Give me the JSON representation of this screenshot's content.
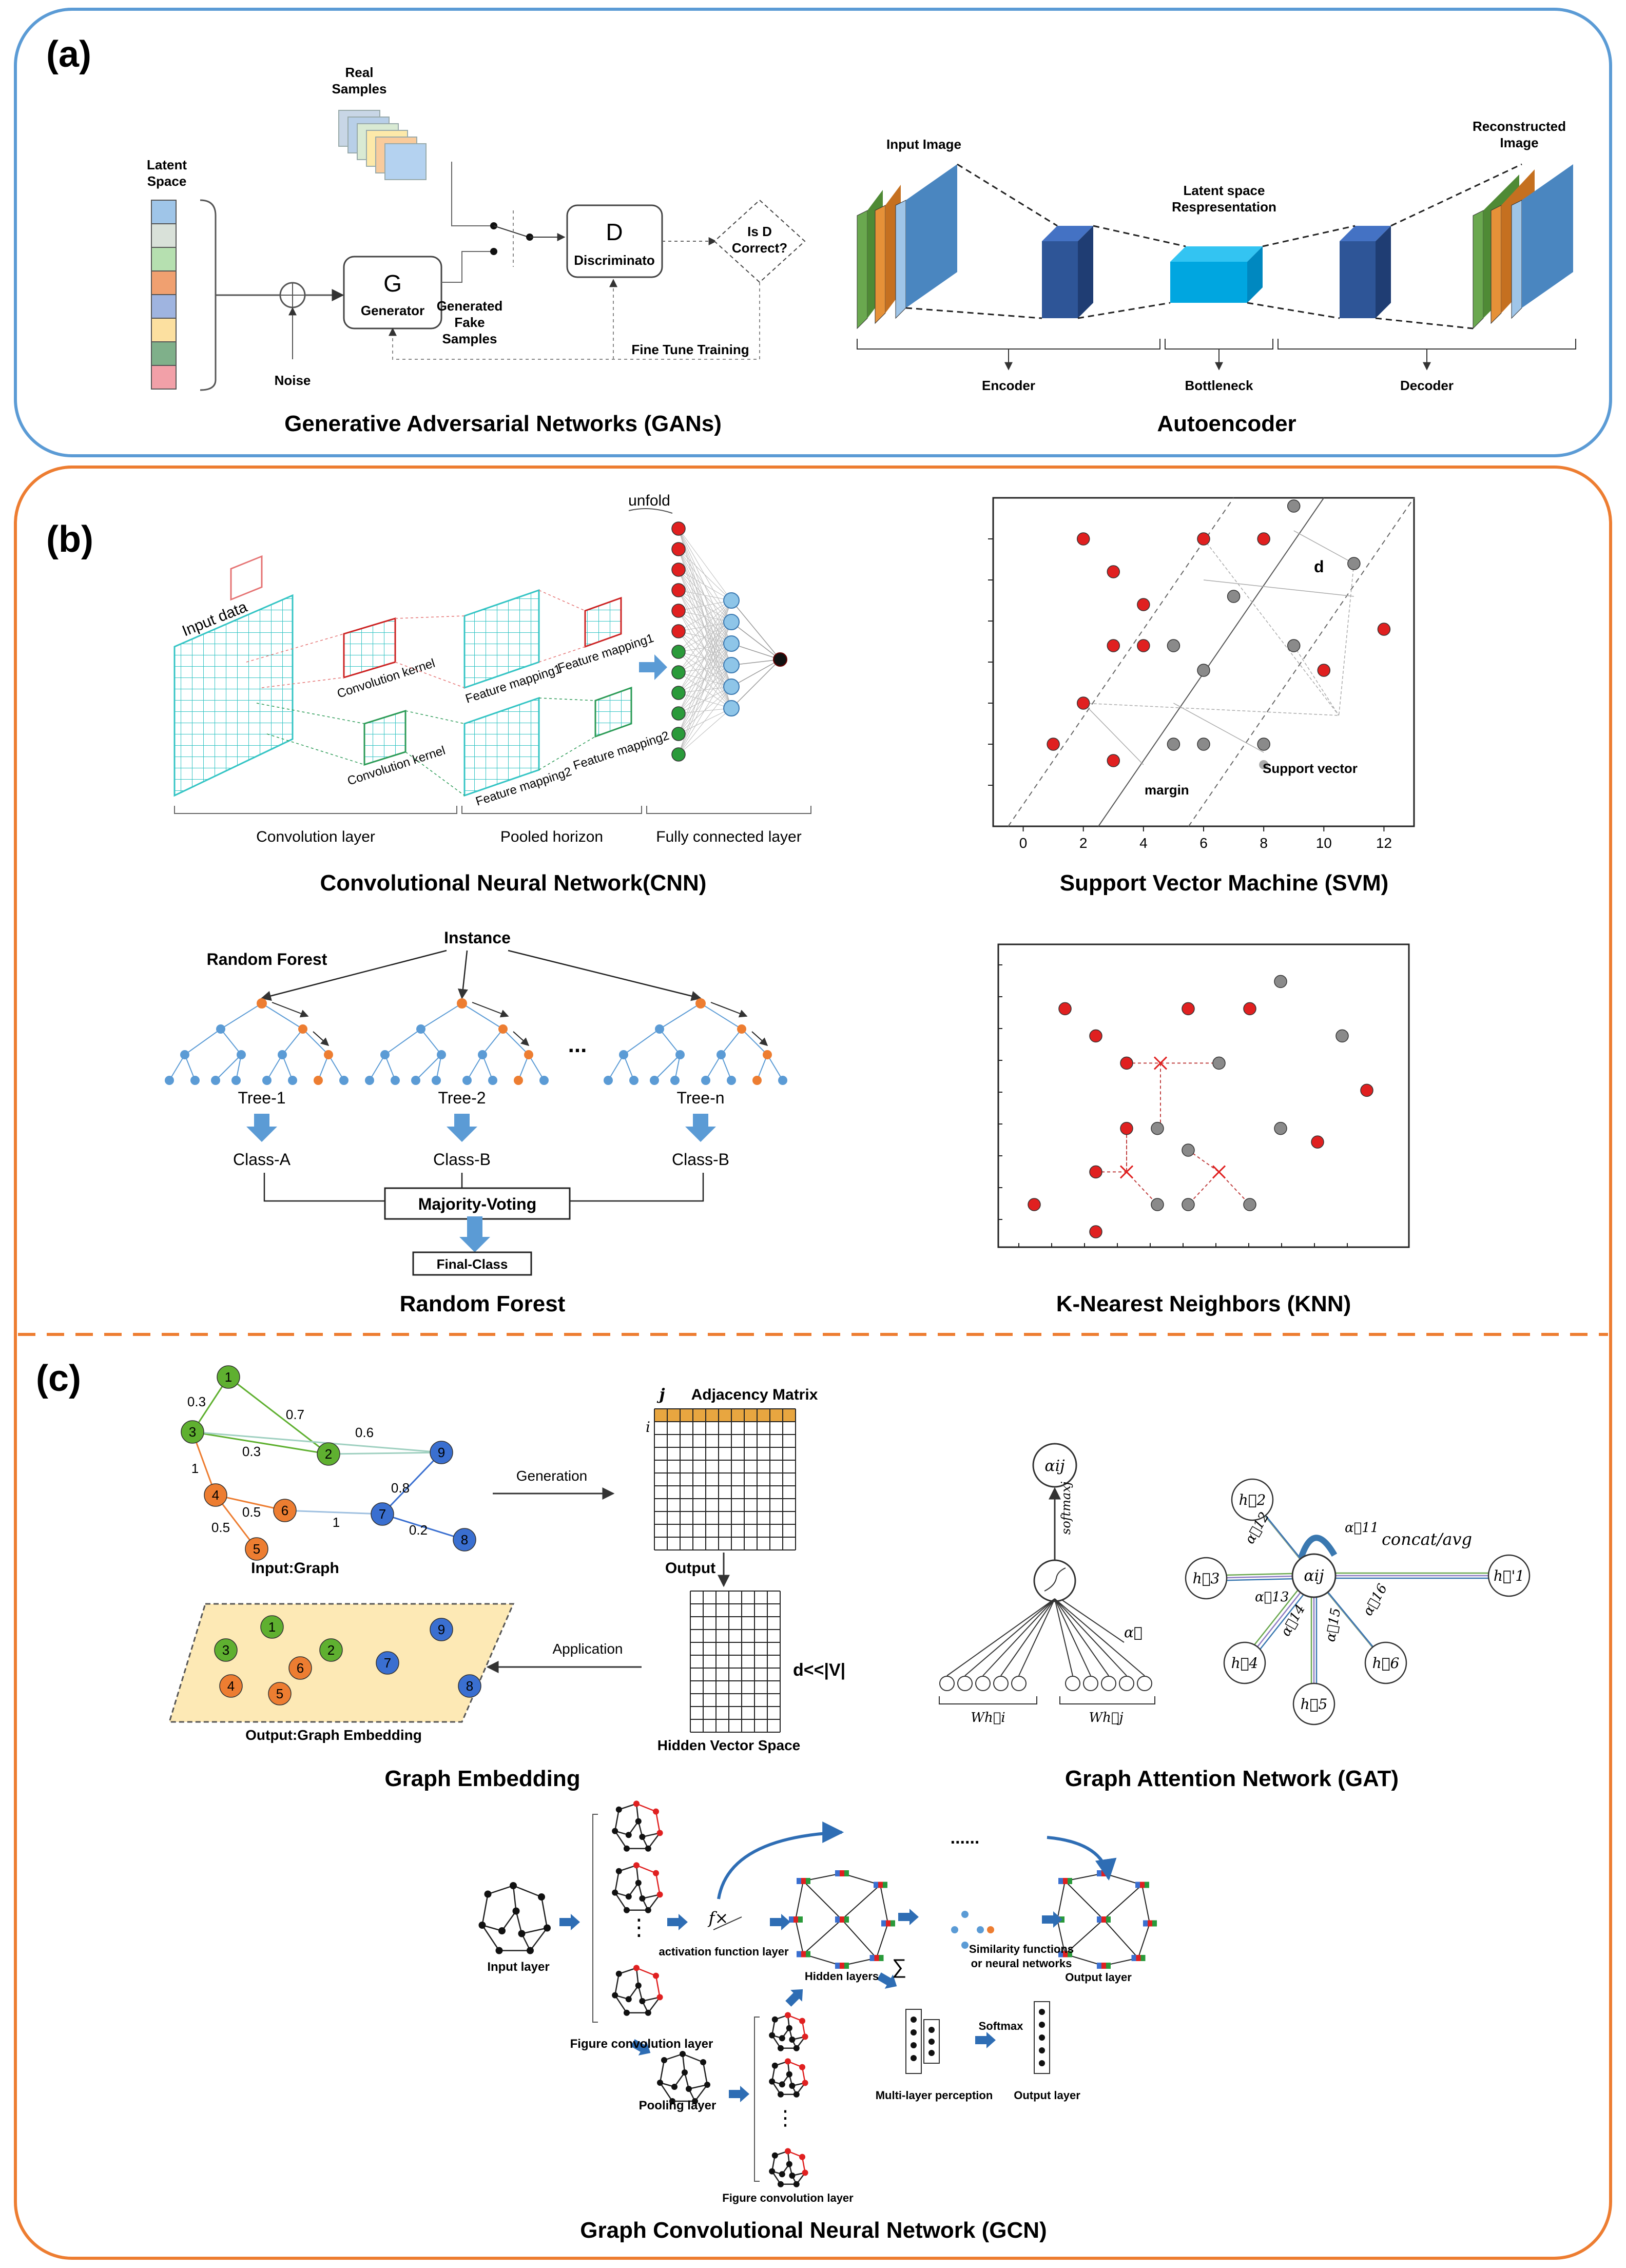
{
  "panels": {
    "a": "(a)",
    "b": "(b)",
    "c": "(c)"
  },
  "gan": {
    "caption": "Generative Adversarial Networks (GANs)",
    "latent_space": [
      "Latent",
      "Space"
    ],
    "latent_colors": [
      "#9fc5e8",
      "#d9e1d9",
      "#b6e0b0",
      "#f0a070",
      "#9fb4e0",
      "#fce0a0",
      "#7fb08a",
      "#f2a0a8"
    ],
    "noise": "Noise",
    "real_samples": [
      "Real",
      "Samples"
    ],
    "generator_letter": "G",
    "generator": "Generator",
    "discriminator_letter": "D",
    "discriminator": "Discriminato",
    "generated": [
      "Generated",
      "Fake",
      "Samples"
    ],
    "is_d_correct": [
      "Is D",
      "Correct?"
    ],
    "fine_tune": "Fine Tune Training"
  },
  "autoencoder": {
    "caption": "Autoencoder",
    "input_image": "Input Image",
    "reconstructed": [
      "Reconstructed",
      "Image"
    ],
    "latent": [
      "Latent space",
      "Respresentation"
    ],
    "encoder": "Encoder",
    "bottleneck": "Bottleneck",
    "decoder": "Decoder"
  },
  "cnn": {
    "caption": "Convolutional Neural Network(CNN)",
    "input_data": "Input data",
    "conv_kernel_1": "Convolution kernel",
    "conv_kernel_2": "Convolution kernel",
    "fm1a": "Feature mapping1",
    "fm1b": "Feature mapping1",
    "fm2a": "Feature mapping2",
    "fm2b": "Feature mapping2",
    "unfold": "unfold",
    "conv_layer": "Convolution layer",
    "pooled": "Pooled horizon",
    "fc_layer": "Fully connected layer"
  },
  "svm": {
    "caption": "Support Vector Machine (SVM)",
    "d_label": "d",
    "margin": "margin",
    "support_vector": "Support vector",
    "x_ticks": [
      "0",
      "2",
      "4",
      "6",
      "8",
      "10",
      "12"
    ]
  },
  "random_forest": {
    "caption": "Random Forest",
    "title": "Random Forest",
    "instance": "Instance",
    "ellipsis": "...",
    "trees": [
      "Tree-1",
      "Tree-2",
      "Tree-n"
    ],
    "classes": [
      "Class-A",
      "Class-B",
      "Class-B"
    ],
    "voting": "Majority-Voting",
    "final": "Final-Class"
  },
  "knn": {
    "caption": "K-Nearest Neighbors (KNN)"
  },
  "chart_data": [
    {
      "type": "scatter",
      "title": "Support Vector Machine (SVM)",
      "xlim": [
        -1,
        13
      ],
      "ylim": [
        0,
        8
      ],
      "series": [
        {
          "name": "class-red",
          "color": "#e02020",
          "points": [
            [
              2,
              7
            ],
            [
              3,
              6.2
            ],
            [
              4,
              5.4
            ],
            [
              6,
              7
            ],
            [
              8,
              7
            ],
            [
              3,
              4.4
            ],
            [
              4,
              4.4
            ],
            [
              10,
              3.8
            ],
            [
              12,
              4.8
            ],
            [
              2,
              3
            ],
            [
              1,
              2
            ],
            [
              3,
              1.6
            ]
          ]
        },
        {
          "name": "class-gray",
          "color": "#8a8a8a",
          "points": [
            [
              9,
              7.8
            ],
            [
              11,
              6.4
            ],
            [
              7,
              5.6
            ],
            [
              5,
              4.4
            ],
            [
              6,
              3.8
            ],
            [
              9,
              4.4
            ],
            [
              5,
              2
            ],
            [
              6,
              2
            ],
            [
              8,
              2
            ]
          ]
        }
      ]
    },
    {
      "type": "scatter",
      "title": "K-Nearest Neighbors (KNN)",
      "xlim": [
        0,
        12
      ],
      "ylim": [
        0,
        10
      ],
      "series": [
        {
          "name": "class-red",
          "color": "#e02020",
          "points": [
            [
              1.5,
              8.2
            ],
            [
              2.5,
              7.2
            ],
            [
              5.5,
              8.2
            ],
            [
              7.5,
              8.2
            ],
            [
              3.5,
              6.2
            ],
            [
              3.5,
              3.8
            ],
            [
              2.5,
              2.2
            ],
            [
              0.5,
              1
            ],
            [
              11.3,
              5.2
            ],
            [
              9.7,
              3.3
            ],
            [
              2.5,
              0
            ]
          ]
        },
        {
          "name": "class-gray",
          "color": "#8a8a8a",
          "points": [
            [
              8.5,
              9.2
            ],
            [
              10.5,
              7.2
            ],
            [
              6.5,
              6.2
            ],
            [
              4.5,
              3.8
            ],
            [
              8.5,
              3.8
            ],
            [
              5.5,
              3
            ],
            [
              4.5,
              1
            ],
            [
              5.5,
              1
            ],
            [
              7.5,
              1
            ]
          ]
        }
      ]
    }
  ],
  "graph_embedding": {
    "caption": "Graph Embedding",
    "input_graph": "Input:Graph",
    "edge_weights": [
      "0.3",
      "0.7",
      "0.3",
      "0.6",
      "1",
      "0.8",
      "0.5",
      "1",
      "0.5",
      "0.2"
    ],
    "nodes": [
      "1",
      "2",
      "3",
      "4",
      "5",
      "6",
      "7",
      "8",
      "9"
    ],
    "generation": "Generation",
    "adjacency_j": "j",
    "adjacency": "Adjacency Matrix",
    "adjacency_i": "i",
    "output": "Output",
    "application": "Application",
    "d_v": "d<<|V|",
    "hidden_space": "Hidden Vector Space",
    "output_embedding": "Output:Graph Embedding"
  },
  "gat": {
    "caption": "Graph Attention Network (GAT)",
    "alpha_ij": "αij",
    "softmax": "softmaxj",
    "alpha_vec": "α⃗",
    "w_hi": "Wh⃗i",
    "w_hj": "Wh⃗j",
    "concat": "concat/avg",
    "h_nodes": [
      "h⃗2",
      "h⃗3",
      "h⃗4",
      "h⃗5",
      "h⃗6",
      "h⃗'1"
    ],
    "edge_alphas": [
      "α⃗11",
      "α⃗12",
      "α⃗13",
      "α⃗14",
      "α⃗15",
      "α⃗16"
    ]
  },
  "gcn": {
    "caption": "Graph Convolutional Neural Network (GCN)",
    "input_layer": "Input layer",
    "figure_conv": "Figure convolution layer",
    "figure_conv_2": "Figure convolution layer",
    "activation": "activation function layer",
    "fx": "f×",
    "hidden": "Hidden layers",
    "similarity": [
      "Similarity functions",
      "or neural networks"
    ],
    "output_layer": "Output layer",
    "output_layer_2": "Output layer",
    "pooling": "Pooling layer",
    "mlp": "Multi-layer perception",
    "softmax": "Softmax",
    "dots": "......",
    "vdots": "⋮",
    "sum": "∑"
  }
}
